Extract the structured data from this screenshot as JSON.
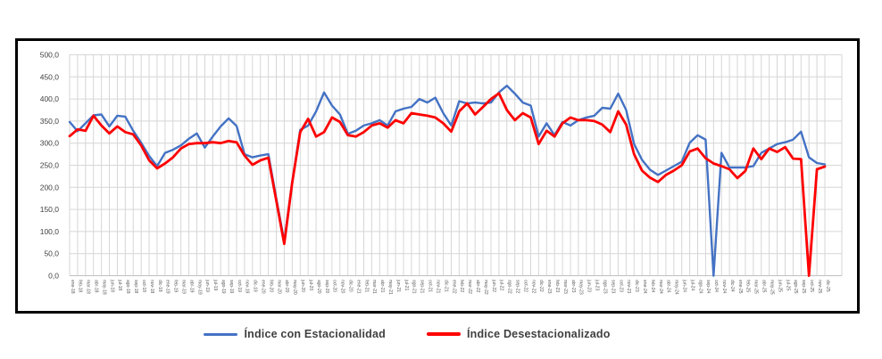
{
  "chart_data": {
    "type": "line",
    "title": "",
    "xlabel": "",
    "ylabel": "",
    "ylim": [
      0,
      500
    ],
    "ytick_step": 50,
    "ytick_labels": [
      "0,0",
      "50,0",
      "100,0",
      "150,0",
      "200,0",
      "250,0",
      "300,0",
      "350,0",
      "400,0",
      "450,0",
      "500,0"
    ],
    "grid": true,
    "legend_position": "bottom",
    "grid_color": "#d6d6d6",
    "tick_label_color": "#595959",
    "categories": [
      "ene-18",
      "feb-18",
      "mar-18",
      "abr-18",
      "may-18",
      "jun-18",
      "jul-18",
      "ago-18",
      "sep-18",
      "oct-18",
      "nov-18",
      "dic-18",
      "ene-19",
      "feb-19",
      "mar-19",
      "abr-19",
      "may-19",
      "jun-19",
      "jul-19",
      "ago-19",
      "sep-19",
      "oct-19",
      "nov-19",
      "dic-19",
      "ene-20",
      "feb-20",
      "mar-20",
      "abr-20",
      "may-20",
      "jun-20",
      "jul-20",
      "ago-20",
      "sep-20",
      "oct-20",
      "nov-20",
      "dic-20",
      "ene-21",
      "feb-21",
      "mar-21",
      "abr-21",
      "may-21",
      "jun-21",
      "jul-21",
      "ago-21",
      "sep-21",
      "oct-21",
      "nov-21",
      "dic-21",
      "ene-22",
      "feb-22",
      "mar-22",
      "abr-22",
      "may-22",
      "jun-22",
      "jul-22",
      "ago-22",
      "sep-22",
      "oct-22",
      "nov-22",
      "dic-22",
      "ene-23",
      "feb-23",
      "mar-23",
      "abr-23",
      "may-23",
      "jun-23",
      "jul-23",
      "ago-23",
      "sep-23",
      "oct-23",
      "nov-23",
      "dic-23",
      "ene-24",
      "feb-24",
      "mar-24",
      "abr-24",
      "may-24",
      "jun-24",
      "jul-24",
      "ago-24",
      "sep-24",
      "oct-24",
      "nov-24",
      "dic-24",
      "ene-25",
      "feb-25",
      "mar-25",
      "abr-25",
      "may-25",
      "jun-25",
      "jul-25",
      "ago-25",
      "sep-25",
      "oct-25",
      "nov-25",
      "dic-25"
    ],
    "series": [
      {
        "name": "Índice con Estacionalidad",
        "color": "#4472c4",
        "values": [
          348,
          327,
          345,
          363,
          365,
          338,
          362,
          360,
          328,
          301,
          271,
          248,
          278,
          285,
          295,
          310,
          322,
          290,
          315,
          338,
          356,
          339,
          275,
          268,
          272,
          275,
          175,
          78,
          212,
          330,
          340,
          372,
          415,
          385,
          365,
          321,
          328,
          340,
          345,
          352,
          340,
          372,
          378,
          382,
          400,
          392,
          403,
          368,
          340,
          395,
          390,
          392,
          390,
          392,
          415,
          430,
          412,
          392,
          385,
          315,
          345,
          318,
          348,
          340,
          352,
          358,
          362,
          380,
          378,
          412,
          375,
          298,
          262,
          240,
          228,
          238,
          248,
          258,
          301,
          318,
          308,
          0,
          278,
          245,
          245,
          245,
          248,
          278,
          288,
          298,
          302,
          308,
          326,
          268,
          255,
          252
        ]
      },
      {
        "name": "Índice Desestacionalizado",
        "color": "#ff0000",
        "values": [
          316,
          331,
          328,
          362,
          340,
          322,
          338,
          325,
          320,
          295,
          261,
          243,
          254,
          268,
          288,
          298,
          300,
          300,
          302,
          300,
          305,
          302,
          272,
          251,
          261,
          267,
          170,
          72,
          210,
          325,
          355,
          315,
          325,
          358,
          348,
          318,
          315,
          325,
          340,
          345,
          335,
          352,
          345,
          368,
          365,
          362,
          358,
          345,
          326,
          372,
          390,
          365,
          382,
          400,
          413,
          375,
          352,
          368,
          358,
          298,
          328,
          315,
          345,
          358,
          352,
          352,
          350,
          342,
          325,
          372,
          342,
          275,
          238,
          222,
          212,
          228,
          238,
          250,
          281,
          288,
          266,
          254,
          248,
          241,
          221,
          237,
          288,
          264,
          288,
          280,
          291,
          265,
          264,
          0,
          241,
          247
        ]
      }
    ]
  }
}
